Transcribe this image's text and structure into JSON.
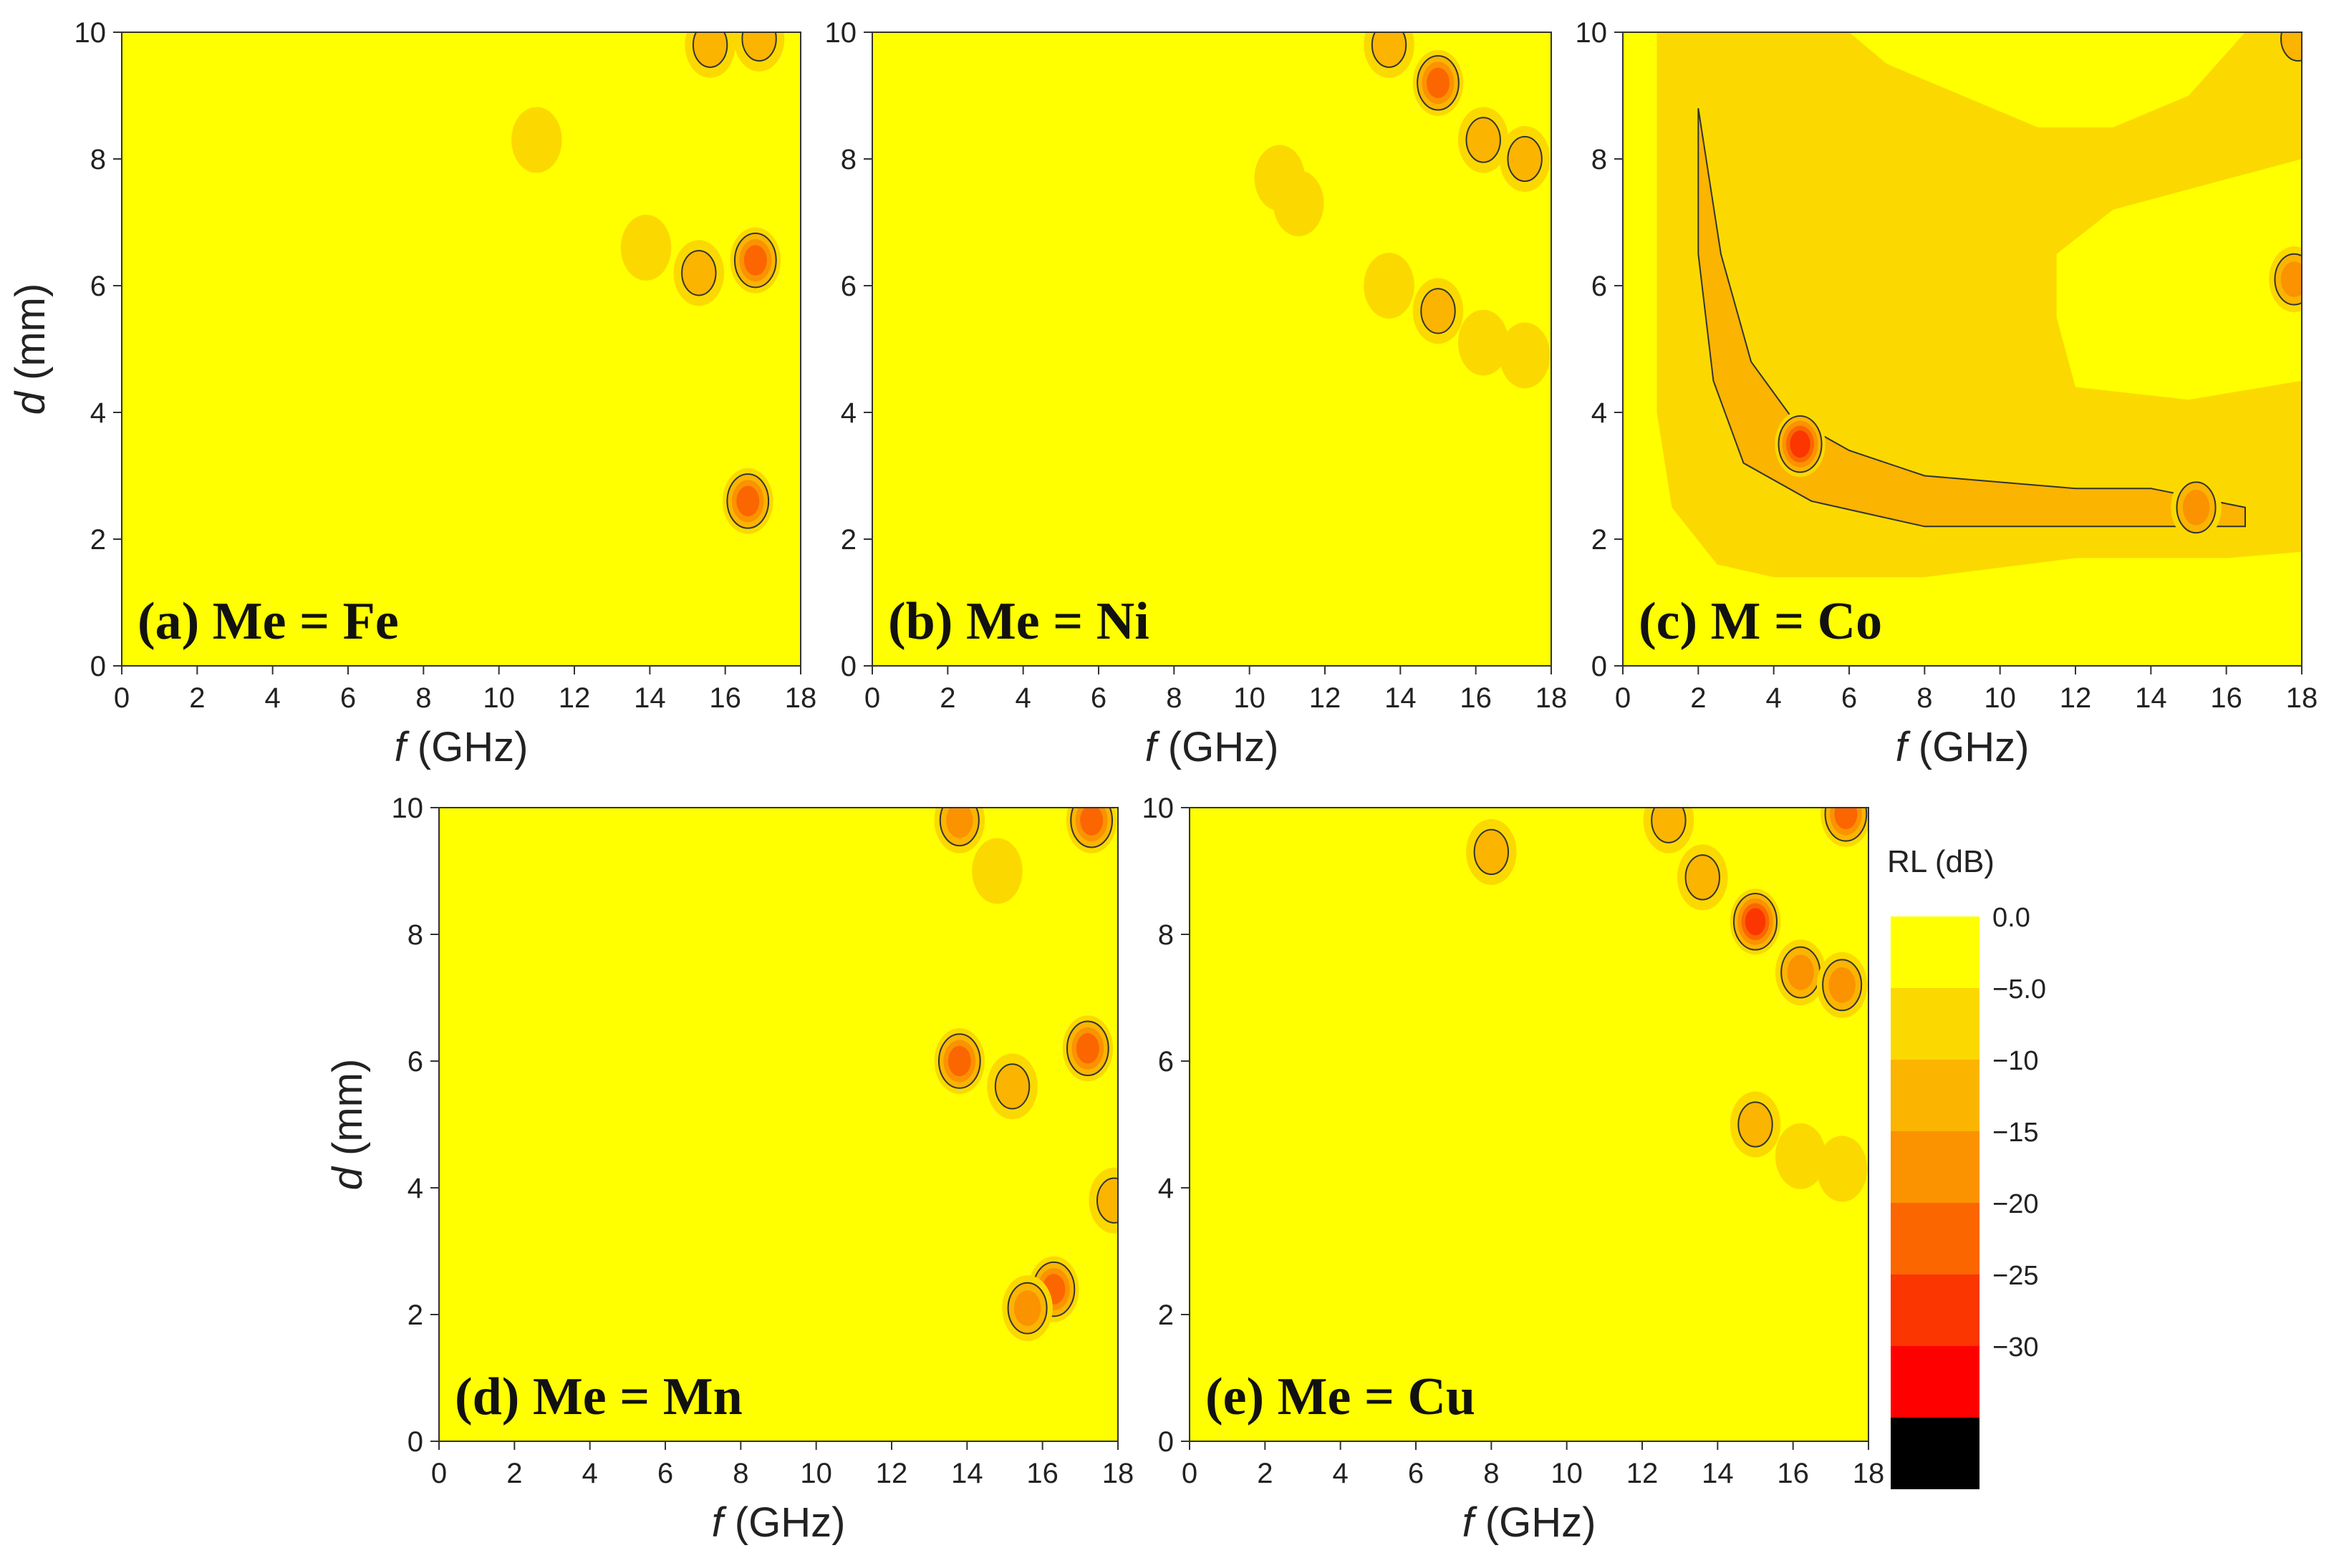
{
  "figure_type": "contour map grid",
  "colors": {
    "background": "#ffffff",
    "axis": "#333333",
    "contour_line": "#333333"
  },
  "colorbar": {
    "title": "RL (dB)",
    "levels": [
      {
        "label": "0.0",
        "color": "#ffff00"
      },
      {
        "label": "−5.0",
        "color": "#fbd900"
      },
      {
        "label": "−10",
        "color": "#fbb400"
      },
      {
        "label": "−15",
        "color": "#fb9200"
      },
      {
        "label": "−20",
        "color": "#fb6600"
      },
      {
        "label": "−25",
        "color": "#fb3600"
      },
      {
        "label": "−30",
        "color": "#ff0000"
      },
      {
        "label": "",
        "color": "#000000"
      }
    ]
  },
  "chart_data": [
    {
      "type": "heatmap",
      "panel": "a",
      "label": "(a) Me = Fe",
      "xlabel_var": "f",
      "xlabel_unit": "(GHz)",
      "ylabel_var": "d",
      "ylabel_unit": "(mm)",
      "show_ylabel": true,
      "xlim": [
        0,
        18
      ],
      "ylim": [
        0,
        10
      ],
      "xticks": [
        0,
        2,
        4,
        6,
        8,
        10,
        12,
        14,
        16,
        18
      ],
      "yticks": [
        0,
        2,
        4,
        6,
        8,
        10
      ],
      "absorption_peaks": [
        {
          "f": 16.6,
          "d": 2.6,
          "min_rl": -22
        },
        {
          "f": 16.8,
          "d": 6.4,
          "min_rl": -22
        },
        {
          "f": 15.3,
          "d": 6.2,
          "min_rl": -11
        },
        {
          "f": 16.9,
          "d": 9.9,
          "min_rl": -12
        },
        {
          "f": 15.6,
          "d": 9.8,
          "min_rl": -10
        },
        {
          "f": 13.9,
          "d": 6.6,
          "min_rl": -6
        },
        {
          "f": 11.0,
          "d": 8.3,
          "min_rl": -6
        }
      ]
    },
    {
      "type": "heatmap",
      "panel": "b",
      "label": "(b) Me = Ni",
      "xlabel_var": "f",
      "xlabel_unit": "(GHz)",
      "ylabel_var": "d",
      "ylabel_unit": "(mm)",
      "show_ylabel": false,
      "xlim": [
        0,
        18
      ],
      "ylim": [
        0,
        10
      ],
      "xticks": [
        0,
        2,
        4,
        6,
        8,
        10,
        12,
        14,
        16,
        18
      ],
      "yticks": [
        0,
        2,
        4,
        6,
        8,
        10
      ],
      "absorption_peaks": [
        {
          "f": 15.0,
          "d": 9.2,
          "min_rl": -20
        },
        {
          "f": 13.7,
          "d": 9.8,
          "min_rl": -12
        },
        {
          "f": 16.2,
          "d": 8.3,
          "min_rl": -12
        },
        {
          "f": 17.3,
          "d": 8.0,
          "min_rl": -12
        },
        {
          "f": 15.0,
          "d": 5.6,
          "min_rl": -10
        },
        {
          "f": 13.7,
          "d": 6.0,
          "min_rl": -6
        },
        {
          "f": 16.2,
          "d": 5.1,
          "min_rl": -6
        },
        {
          "f": 17.3,
          "d": 4.9,
          "min_rl": -6
        },
        {
          "f": 10.8,
          "d": 7.7,
          "min_rl": -6
        },
        {
          "f": 11.3,
          "d": 7.3,
          "min_rl": -6
        }
      ]
    },
    {
      "type": "heatmap",
      "panel": "c",
      "label": "(c) M = Co",
      "xlabel_var": "f",
      "xlabel_unit": "(GHz)",
      "ylabel_var": "d",
      "ylabel_unit": "(mm)",
      "show_ylabel": false,
      "xlim": [
        0,
        18
      ],
      "ylim": [
        0,
        10
      ],
      "xticks": [
        0,
        2,
        4,
        6,
        8,
        10,
        12,
        14,
        16,
        18
      ],
      "yticks": [
        0,
        2,
        4,
        6,
        8,
        10
      ],
      "absorption_peaks": [
        {
          "f": 4.7,
          "d": 3.5,
          "min_rl": -25
        },
        {
          "f": 15.2,
          "d": 2.5,
          "min_rl": -18
        },
        {
          "f": 17.8,
          "d": 6.1,
          "min_rl": -15
        },
        {
          "f": 17.9,
          "d": 9.9,
          "min_rl": -10
        }
      ],
      "broad_region": "RL below -5 dB over most of panel; RL below -10 dB band from f=2 GHz, d=8.8 mm curving down to d=2.2 mm at f=16.5 GHz"
    },
    {
      "type": "heatmap",
      "panel": "d",
      "label": "(d) Me = Mn",
      "xlabel_var": "f",
      "xlabel_unit": "(GHz)",
      "ylabel_var": "d",
      "ylabel_unit": "(mm)",
      "show_ylabel": true,
      "xlim": [
        0,
        18
      ],
      "ylim": [
        0,
        10
      ],
      "xticks": [
        0,
        2,
        4,
        6,
        8,
        10,
        12,
        14,
        16,
        18
      ],
      "yticks": [
        0,
        2,
        4,
        6,
        8,
        10
      ],
      "absorption_peaks": [
        {
          "f": 16.3,
          "d": 2.4,
          "min_rl": -22
        },
        {
          "f": 15.6,
          "d": 2.1,
          "min_rl": -18
        },
        {
          "f": 17.2,
          "d": 6.2,
          "min_rl": -22
        },
        {
          "f": 13.8,
          "d": 6.0,
          "min_rl": -20
        },
        {
          "f": 15.2,
          "d": 5.6,
          "min_rl": -12
        },
        {
          "f": 17.3,
          "d": 9.8,
          "min_rl": -22
        },
        {
          "f": 13.8,
          "d": 9.8,
          "min_rl": -15
        },
        {
          "f": 14.8,
          "d": 9.0,
          "min_rl": -8
        },
        {
          "f": 17.9,
          "d": 3.8,
          "min_rl": -10
        }
      ]
    },
    {
      "type": "heatmap",
      "panel": "e",
      "label": "(e) Me = Cu",
      "xlabel_var": "f",
      "xlabel_unit": "(GHz)",
      "ylabel_var": "d",
      "ylabel_unit": "(mm)",
      "show_ylabel": false,
      "xlim": [
        0,
        18
      ],
      "ylim": [
        0,
        10
      ],
      "xticks": [
        0,
        2,
        4,
        6,
        8,
        10,
        12,
        14,
        16,
        18
      ],
      "yticks": [
        0,
        2,
        4,
        6,
        8,
        10
      ],
      "absorption_peaks": [
        {
          "f": 15.0,
          "d": 8.2,
          "min_rl": -25
        },
        {
          "f": 16.2,
          "d": 7.4,
          "min_rl": -18
        },
        {
          "f": 17.3,
          "d": 7.2,
          "min_rl": -18
        },
        {
          "f": 17.4,
          "d": 9.9,
          "min_rl": -20
        },
        {
          "f": 13.6,
          "d": 8.9,
          "min_rl": -12
        },
        {
          "f": 12.7,
          "d": 9.8,
          "min_rl": -10
        },
        {
          "f": 8.0,
          "d": 9.3,
          "min_rl": -12
        },
        {
          "f": 15.0,
          "d": 5.0,
          "min_rl": -10
        },
        {
          "f": 16.2,
          "d": 4.5,
          "min_rl": -8
        },
        {
          "f": 17.3,
          "d": 4.3,
          "min_rl": -8
        }
      ]
    }
  ]
}
